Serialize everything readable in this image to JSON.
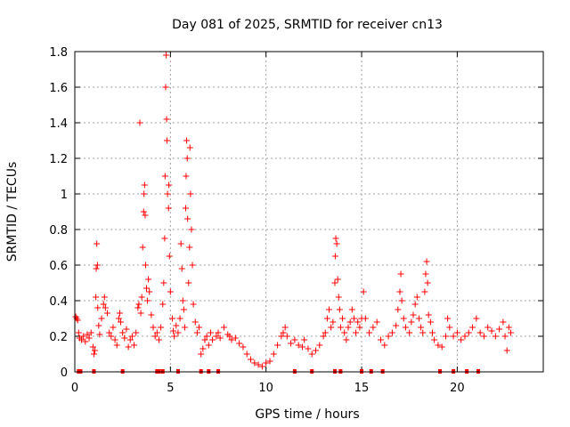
{
  "chart_data": {
    "type": "scatter",
    "title": "Day 081 of 2025, SRMTID for receiver cn13",
    "xlabel": "GPS time / hours",
    "ylabel": "SRMTID / TECUs",
    "xlim": [
      0,
      24.5
    ],
    "ylim": [
      0,
      1.8
    ],
    "x_ticks": [
      0,
      5,
      10,
      15,
      20
    ],
    "x_tick_labels": [
      "0",
      "5",
      "10",
      "15",
      "20"
    ],
    "y_ticks": [
      0,
      0.2,
      0.4,
      0.6,
      0.8,
      1.0,
      1.2,
      1.4,
      1.6,
      1.8
    ],
    "y_tick_labels": [
      "0",
      "0.2",
      "0.4",
      "0.6",
      "0.8",
      "1",
      "1.2",
      "1.4",
      "1.6",
      "1.8"
    ],
    "grid": true,
    "marker": "+",
    "color": "#ff0000",
    "series": [
      {
        "name": "SRMTID cn13",
        "points": [
          [
            0.05,
            0.31
          ],
          [
            0.1,
            0.3
          ],
          [
            0.15,
            0.29
          ],
          [
            0.2,
            0.22
          ],
          [
            0.25,
            0.19
          ],
          [
            0.35,
            0.18
          ],
          [
            0.45,
            0.2
          ],
          [
            0.55,
            0.17
          ],
          [
            0.65,
            0.21
          ],
          [
            0.75,
            0.19
          ],
          [
            0.85,
            0.22
          ],
          [
            0.95,
            0.14
          ],
          [
            1.0,
            0.1
          ],
          [
            1.05,
            0.12
          ],
          [
            1.1,
            0.42
          ],
          [
            1.12,
            0.58
          ],
          [
            1.15,
            0.72
          ],
          [
            1.18,
            0.6
          ],
          [
            1.2,
            0.36
          ],
          [
            1.25,
            0.26
          ],
          [
            1.3,
            0.21
          ],
          [
            1.4,
            0.3
          ],
          [
            1.5,
            0.38
          ],
          [
            1.55,
            0.42
          ],
          [
            1.6,
            0.36
          ],
          [
            1.7,
            0.33
          ],
          [
            1.8,
            0.22
          ],
          [
            1.9,
            0.2
          ],
          [
            2.0,
            0.25
          ],
          [
            2.1,
            0.18
          ],
          [
            2.2,
            0.15
          ],
          [
            2.3,
            0.3
          ],
          [
            2.35,
            0.33
          ],
          [
            2.4,
            0.28
          ],
          [
            2.5,
            0.22
          ],
          [
            2.6,
            0.19
          ],
          [
            2.7,
            0.24
          ],
          [
            2.8,
            0.14
          ],
          [
            2.9,
            0.18
          ],
          [
            3.0,
            0.2
          ],
          [
            3.1,
            0.15
          ],
          [
            3.2,
            0.22
          ],
          [
            3.3,
            0.36
          ],
          [
            3.35,
            0.38
          ],
          [
            3.4,
            1.4
          ],
          [
            3.45,
            0.33
          ],
          [
            3.5,
            0.42
          ],
          [
            3.55,
            0.7
          ],
          [
            3.6,
            0.9
          ],
          [
            3.62,
            1.0
          ],
          [
            3.65,
            1.05
          ],
          [
            3.68,
            0.88
          ],
          [
            3.7,
            0.6
          ],
          [
            3.75,
            0.47
          ],
          [
            3.8,
            0.4
          ],
          [
            3.85,
            0.52
          ],
          [
            3.9,
            0.45
          ],
          [
            4.0,
            0.32
          ],
          [
            4.1,
            0.25
          ],
          [
            4.2,
            0.2
          ],
          [
            4.3,
            0.22
          ],
          [
            4.4,
            0.18
          ],
          [
            4.5,
            0.25
          ],
          [
            4.6,
            0.38
          ],
          [
            4.65,
            0.5
          ],
          [
            4.7,
            0.75
          ],
          [
            4.72,
            1.1
          ],
          [
            4.75,
            1.6
          ],
          [
            4.78,
            1.78
          ],
          [
            4.8,
            1.42
          ],
          [
            4.82,
            1.3
          ],
          [
            4.85,
            1.0
          ],
          [
            4.9,
            0.92
          ],
          [
            4.92,
            1.05
          ],
          [
            4.95,
            0.65
          ],
          [
            5.0,
            0.45
          ],
          [
            5.1,
            0.3
          ],
          [
            5.15,
            0.23
          ],
          [
            5.2,
            0.2
          ],
          [
            5.3,
            0.26
          ],
          [
            5.4,
            0.22
          ],
          [
            5.5,
            0.3
          ],
          [
            5.55,
            0.72
          ],
          [
            5.6,
            0.58
          ],
          [
            5.65,
            0.4
          ],
          [
            5.7,
            0.35
          ],
          [
            5.75,
            0.25
          ],
          [
            5.8,
            0.92
          ],
          [
            5.82,
            1.1
          ],
          [
            5.85,
            1.3
          ],
          [
            5.88,
            1.2
          ],
          [
            5.9,
            0.86
          ],
          [
            5.95,
            0.5
          ],
          [
            6.0,
            0.7
          ],
          [
            6.02,
            1.26
          ],
          [
            6.05,
            1.0
          ],
          [
            6.1,
            0.8
          ],
          [
            6.15,
            0.6
          ],
          [
            6.2,
            0.38
          ],
          [
            6.3,
            0.28
          ],
          [
            6.4,
            0.22
          ],
          [
            6.5,
            0.25
          ],
          [
            6.6,
            0.1
          ],
          [
            6.7,
            0.13
          ],
          [
            6.8,
            0.18
          ],
          [
            6.9,
            0.2
          ],
          [
            7.0,
            0.15
          ],
          [
            7.1,
            0.22
          ],
          [
            7.2,
            0.18
          ],
          [
            7.4,
            0.2
          ],
          [
            7.5,
            0.22
          ],
          [
            7.6,
            0.19
          ],
          [
            7.8,
            0.25
          ],
          [
            8.0,
            0.21
          ],
          [
            8.1,
            0.2
          ],
          [
            8.2,
            0.18
          ],
          [
            8.4,
            0.19
          ],
          [
            8.6,
            0.16
          ],
          [
            8.8,
            0.14
          ],
          [
            9.0,
            0.1
          ],
          [
            9.2,
            0.07
          ],
          [
            9.4,
            0.05
          ],
          [
            9.6,
            0.04
          ],
          [
            9.8,
            0.03
          ],
          [
            10.0,
            0.05
          ],
          [
            10.2,
            0.06
          ],
          [
            10.4,
            0.1
          ],
          [
            10.6,
            0.15
          ],
          [
            10.8,
            0.2
          ],
          [
            10.9,
            0.22
          ],
          [
            11.0,
            0.25
          ],
          [
            11.1,
            0.2
          ],
          [
            11.3,
            0.16
          ],
          [
            11.5,
            0.18
          ],
          [
            11.7,
            0.15
          ],
          [
            11.9,
            0.14
          ],
          [
            12.0,
            0.18
          ],
          [
            12.2,
            0.13
          ],
          [
            12.4,
            0.1
          ],
          [
            12.6,
            0.12
          ],
          [
            12.8,
            0.15
          ],
          [
            13.0,
            0.2
          ],
          [
            13.1,
            0.22
          ],
          [
            13.2,
            0.3
          ],
          [
            13.3,
            0.35
          ],
          [
            13.4,
            0.25
          ],
          [
            13.5,
            0.28
          ],
          [
            13.6,
            0.5
          ],
          [
            13.62,
            0.65
          ],
          [
            13.65,
            0.75
          ],
          [
            13.7,
            0.72
          ],
          [
            13.75,
            0.52
          ],
          [
            13.8,
            0.42
          ],
          [
            13.85,
            0.35
          ],
          [
            13.9,
            0.25
          ],
          [
            14.0,
            0.3
          ],
          [
            14.1,
            0.22
          ],
          [
            14.2,
            0.18
          ],
          [
            14.3,
            0.25
          ],
          [
            14.4,
            0.28
          ],
          [
            14.5,
            0.35
          ],
          [
            14.6,
            0.3
          ],
          [
            14.7,
            0.22
          ],
          [
            14.8,
            0.28
          ],
          [
            14.9,
            0.25
          ],
          [
            15.0,
            0.3
          ],
          [
            15.1,
            0.45
          ],
          [
            15.2,
            0.3
          ],
          [
            15.4,
            0.22
          ],
          [
            15.6,
            0.25
          ],
          [
            15.8,
            0.28
          ],
          [
            16.0,
            0.18
          ],
          [
            16.2,
            0.15
          ],
          [
            16.4,
            0.2
          ],
          [
            16.6,
            0.22
          ],
          [
            16.8,
            0.26
          ],
          [
            16.9,
            0.35
          ],
          [
            17.0,
            0.45
          ],
          [
            17.05,
            0.55
          ],
          [
            17.1,
            0.4
          ],
          [
            17.2,
            0.3
          ],
          [
            17.3,
            0.25
          ],
          [
            17.5,
            0.22
          ],
          [
            17.6,
            0.28
          ],
          [
            17.7,
            0.32
          ],
          [
            17.8,
            0.38
          ],
          [
            17.9,
            0.42
          ],
          [
            18.0,
            0.3
          ],
          [
            18.1,
            0.25
          ],
          [
            18.2,
            0.22
          ],
          [
            18.3,
            0.45
          ],
          [
            18.35,
            0.55
          ],
          [
            18.4,
            0.62
          ],
          [
            18.45,
            0.5
          ],
          [
            18.5,
            0.32
          ],
          [
            18.6,
            0.28
          ],
          [
            18.7,
            0.22
          ],
          [
            18.8,
            0.18
          ],
          [
            19.0,
            0.15
          ],
          [
            19.2,
            0.14
          ],
          [
            19.4,
            0.2
          ],
          [
            19.5,
            0.3
          ],
          [
            19.6,
            0.25
          ],
          [
            19.8,
            0.2
          ],
          [
            20.0,
            0.22
          ],
          [
            20.2,
            0.18
          ],
          [
            20.4,
            0.2
          ],
          [
            20.6,
            0.22
          ],
          [
            20.8,
            0.25
          ],
          [
            21.0,
            0.3
          ],
          [
            21.2,
            0.22
          ],
          [
            21.4,
            0.2
          ],
          [
            21.6,
            0.25
          ],
          [
            21.8,
            0.23
          ],
          [
            22.0,
            0.2
          ],
          [
            22.2,
            0.24
          ],
          [
            22.4,
            0.28
          ],
          [
            22.5,
            0.2
          ],
          [
            22.6,
            0.12
          ],
          [
            22.7,
            0.25
          ],
          [
            22.8,
            0.22
          ]
        ]
      }
    ],
    "zero_markers_x": [
      0.2,
      0.3,
      1.0,
      2.5,
      4.3,
      4.4,
      4.6,
      5.4,
      6.6,
      7.0,
      7.5,
      11.5,
      12.4,
      13.6,
      13.9,
      15.0,
      15.5,
      16.1,
      19.1,
      19.8,
      20.5,
      21.1
    ]
  }
}
